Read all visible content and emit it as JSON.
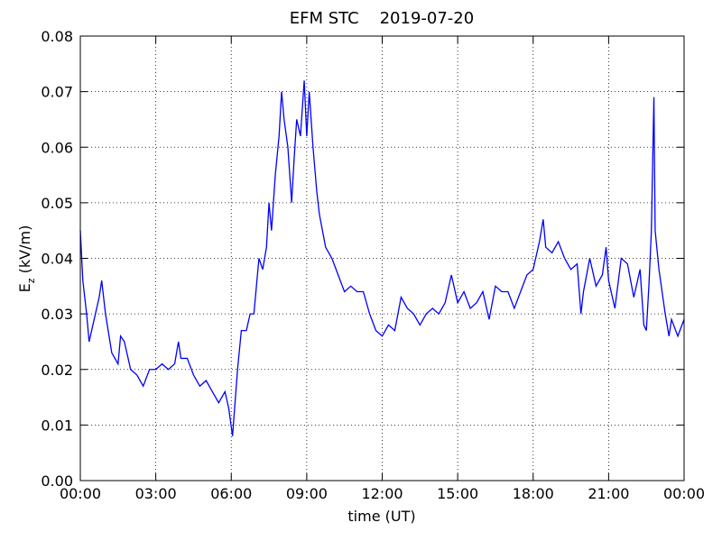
{
  "chart_data": {
    "type": "line",
    "title": "EFM STC    2019-07-20",
    "x_label": "time (UT)",
    "y_label": {
      "symbol": "E",
      "subscript": "z",
      "unit": " (kV/m)"
    },
    "grid": true,
    "xlim": [
      0,
      24
    ],
    "xticks": [
      {
        "value": 0,
        "label": "00:00"
      },
      {
        "value": 3,
        "label": "03:00"
      },
      {
        "value": 6,
        "label": "06:00"
      },
      {
        "value": 9,
        "label": "09:00"
      },
      {
        "value": 12,
        "label": "12:00"
      },
      {
        "value": 15,
        "label": "15:00"
      },
      {
        "value": 18,
        "label": "18:00"
      },
      {
        "value": 21,
        "label": "21:00"
      },
      {
        "value": 24,
        "label": "00:00"
      }
    ],
    "ylim": [
      0,
      0.08
    ],
    "yticks": [
      {
        "value": 0,
        "label": "0.00"
      },
      0.01,
      0.02,
      0.03,
      0.04,
      0.05,
      0.06,
      0.07,
      0.08
    ],
    "series": [
      {
        "color": "#0000ff",
        "x": [
          0.0,
          0.1,
          0.25,
          0.35,
          0.5,
          0.75,
          0.85,
          1.0,
          1.25,
          1.5,
          1.6,
          1.75,
          2.0,
          2.25,
          2.5,
          2.75,
          3.0,
          3.25,
          3.5,
          3.75,
          3.9,
          4.0,
          4.25,
          4.5,
          4.75,
          5.0,
          5.25,
          5.5,
          5.75,
          5.9,
          6.05,
          6.25,
          6.4,
          6.6,
          6.75,
          6.9,
          7.1,
          7.25,
          7.4,
          7.5,
          7.6,
          7.75,
          7.9,
          8.0,
          8.1,
          8.25,
          8.4,
          8.5,
          8.6,
          8.75,
          8.9,
          9.0,
          9.1,
          9.25,
          9.4,
          9.5,
          9.75,
          10.0,
          10.25,
          10.5,
          10.75,
          11.0,
          11.25,
          11.5,
          11.75,
          12.0,
          12.25,
          12.5,
          12.75,
          13.0,
          13.25,
          13.5,
          13.75,
          14.0,
          14.25,
          14.5,
          14.75,
          15.0,
          15.25,
          15.5,
          15.75,
          16.0,
          16.25,
          16.5,
          16.75,
          17.0,
          17.25,
          17.5,
          17.75,
          18.0,
          18.25,
          18.4,
          18.5,
          18.75,
          19.0,
          19.25,
          19.5,
          19.75,
          19.9,
          20.0,
          20.25,
          20.5,
          20.75,
          20.9,
          21.0,
          21.25,
          21.5,
          21.75,
          22.0,
          22.25,
          22.4,
          22.5,
          22.6,
          22.7,
          22.8,
          22.85,
          23.0,
          23.25,
          23.4,
          23.5,
          23.75,
          24.0
        ],
        "values": [
          0.045,
          0.036,
          0.03,
          0.025,
          0.028,
          0.033,
          0.036,
          0.03,
          0.023,
          0.021,
          0.026,
          0.025,
          0.02,
          0.019,
          0.017,
          0.02,
          0.02,
          0.021,
          0.02,
          0.021,
          0.025,
          0.022,
          0.022,
          0.019,
          0.017,
          0.018,
          0.016,
          0.014,
          0.016,
          0.013,
          0.008,
          0.02,
          0.027,
          0.027,
          0.03,
          0.03,
          0.04,
          0.038,
          0.042,
          0.05,
          0.045,
          0.055,
          0.062,
          0.07,
          0.065,
          0.06,
          0.05,
          0.058,
          0.065,
          0.062,
          0.072,
          0.062,
          0.07,
          0.06,
          0.052,
          0.048,
          0.042,
          0.04,
          0.037,
          0.034,
          0.035,
          0.034,
          0.034,
          0.03,
          0.027,
          0.026,
          0.028,
          0.027,
          0.033,
          0.031,
          0.03,
          0.028,
          0.03,
          0.031,
          0.03,
          0.032,
          0.037,
          0.032,
          0.034,
          0.031,
          0.032,
          0.034,
          0.029,
          0.035,
          0.034,
          0.034,
          0.031,
          0.034,
          0.037,
          0.038,
          0.043,
          0.047,
          0.042,
          0.041,
          0.043,
          0.04,
          0.038,
          0.039,
          0.03,
          0.034,
          0.04,
          0.035,
          0.037,
          0.042,
          0.036,
          0.031,
          0.04,
          0.039,
          0.033,
          0.038,
          0.028,
          0.027,
          0.035,
          0.045,
          0.069,
          0.045,
          0.038,
          0.03,
          0.026,
          0.029,
          0.026,
          0.029
        ]
      }
    ]
  }
}
